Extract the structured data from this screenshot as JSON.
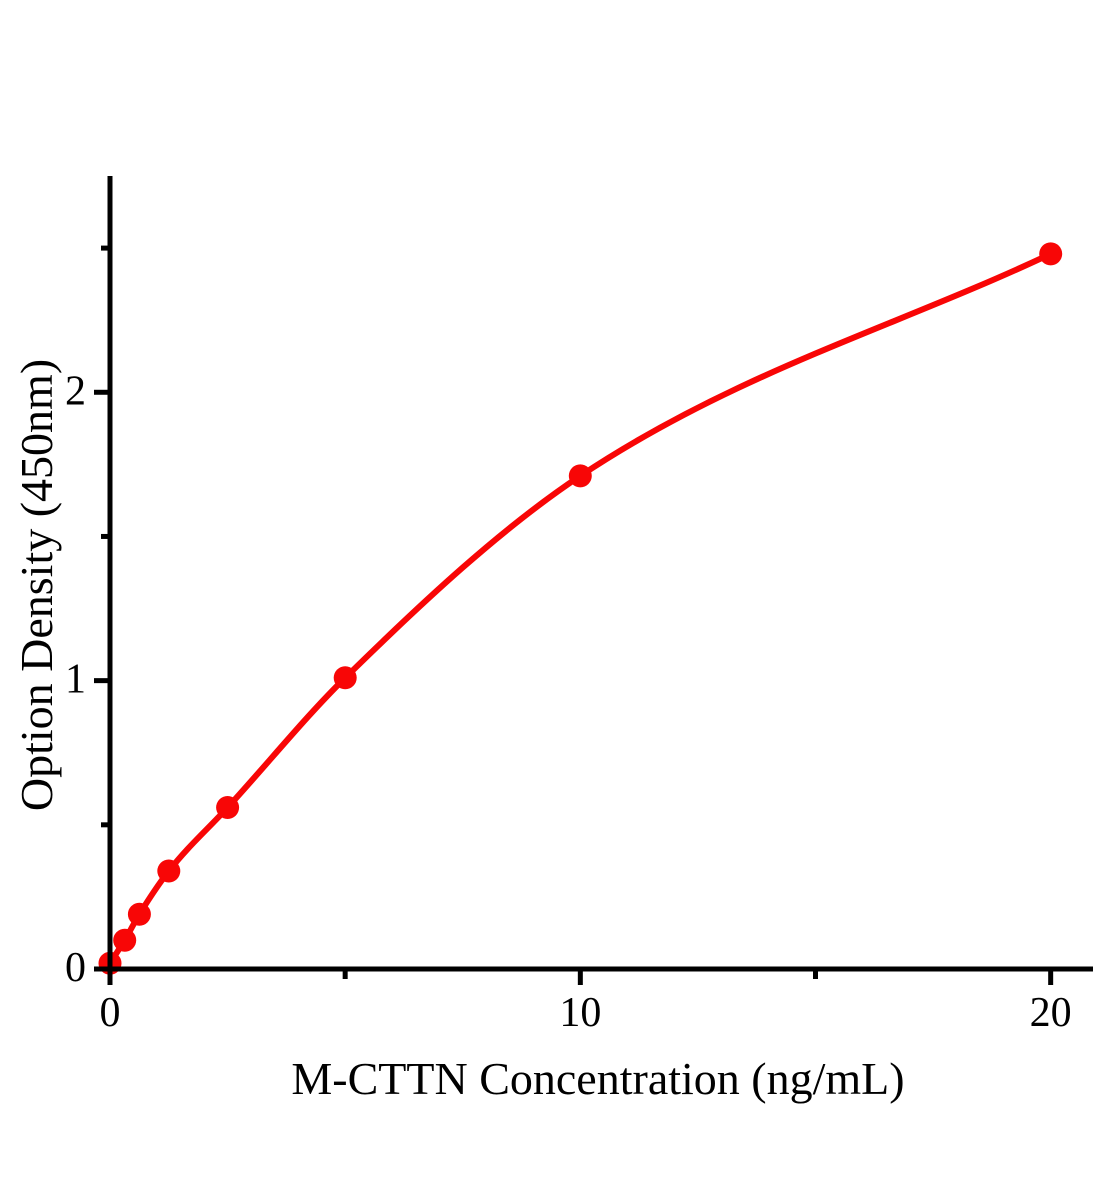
{
  "chart_data": {
    "type": "scatter",
    "title": "",
    "xlabel": "M-CTTN Concentration（ng/mL）",
    "ylabel": "Option Density（450nm）",
    "x": [
      0,
      0.312,
      0.625,
      1.25,
      2.5,
      5,
      10,
      20
    ],
    "y": [
      0.02,
      0.1,
      0.19,
      0.34,
      0.56,
      1.01,
      1.71,
      2.48
    ],
    "curve": "smooth-fit-through-points",
    "xlim": [
      0,
      20.9
    ],
    "ylim": [
      0,
      2.75
    ],
    "x_major_ticks": {
      "values": [
        0,
        10,
        20
      ],
      "labels": [
        "0",
        "10",
        "20"
      ]
    },
    "x_minor_ticks": [
      5,
      15
    ],
    "y_major_ticks": {
      "values": [
        0,
        1,
        2
      ],
      "labels": [
        "0",
        "1",
        "2"
      ]
    },
    "y_minor_ticks": [
      0.5,
      1.5,
      2.5
    ],
    "grid": false,
    "legend": false,
    "series_color": "#f80606",
    "axis_color": "#000000",
    "background": "#ffffff"
  }
}
